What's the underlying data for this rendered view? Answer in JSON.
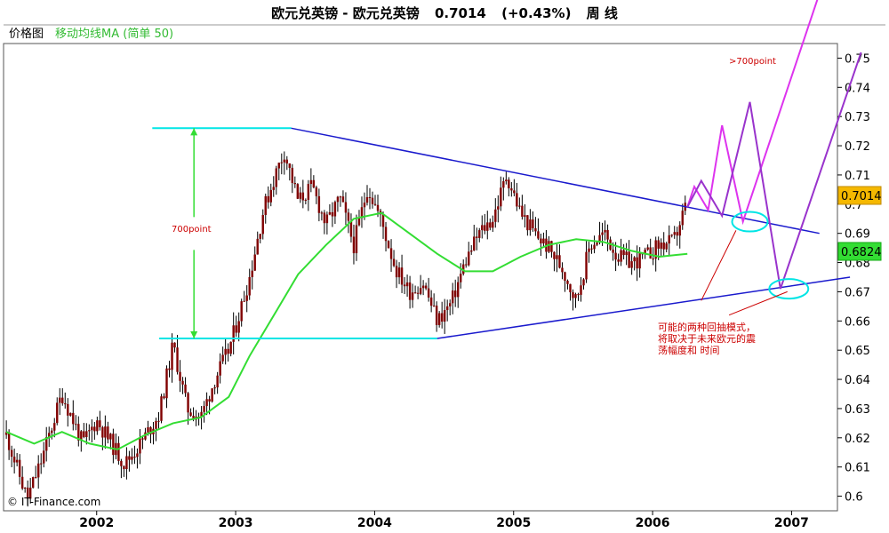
{
  "window": {
    "title": "欧元兑英镑 - 欧元兑英镑",
    "price": "0.7014",
    "change": "(+0.43%)",
    "period": "周 线"
  },
  "legend": {
    "chart_label": "价格图",
    "ma_label": "移动均线MA (简单 50)"
  },
  "annotations": {
    "height_label": "700point",
    "target_label": ">700point",
    "note_line1": "可能的两种回抽模式，",
    "note_line2": "将取决于未来欧元的震",
    "note_line3": "荡幅度和 时间",
    "watermark": "© IT-Finance.com"
  },
  "badges": {
    "price": "0.7014",
    "ma": "0.6824"
  },
  "colors": {
    "candle": "#800000",
    "ma": "#33dd33",
    "cyan": "#00e5e5",
    "trend_blue": "#1a1acd",
    "magenta_scenario": "#dd33ee",
    "purple_scenario": "#9933cc",
    "annotation_red": "#cc0000",
    "price_badge": "#f5b800",
    "ma_badge": "#33dd33"
  },
  "chart_data": {
    "type": "line",
    "series": [
      {
        "name": "",
        "values": [
          [
            2001.35,
            0.621
          ],
          [
            2001.5,
            0.599
          ],
          [
            2001.6,
            0.612
          ],
          [
            2001.75,
            0.635
          ],
          [
            2001.9,
            0.618
          ],
          [
            2002.0,
            0.626
          ],
          [
            2002.2,
            0.611
          ],
          [
            2002.3,
            0.617
          ],
          [
            2002.45,
            0.628
          ],
          [
            2002.55,
            0.652
          ],
          [
            2002.65,
            0.63
          ],
          [
            2002.75,
            0.627
          ],
          [
            2002.85,
            0.64
          ],
          [
            2002.95,
            0.65
          ],
          [
            2003.0,
            0.658
          ],
          [
            2003.1,
            0.675
          ],
          [
            2003.2,
            0.698
          ],
          [
            2003.3,
            0.712
          ],
          [
            2003.35,
            0.718
          ],
          [
            2003.45,
            0.701
          ],
          [
            2003.55,
            0.706
          ],
          [
            2003.65,
            0.693
          ],
          [
            2003.75,
            0.702
          ],
          [
            2003.85,
            0.686
          ],
          [
            2003.95,
            0.706
          ],
          [
            2004.05,
            0.694
          ],
          [
            2004.15,
            0.678
          ],
          [
            2004.25,
            0.67
          ],
          [
            2004.35,
            0.673
          ],
          [
            2004.45,
            0.66
          ],
          [
            2004.55,
            0.666
          ],
          [
            2004.65,
            0.68
          ],
          [
            2004.75,
            0.69
          ],
          [
            2004.85,
            0.695
          ],
          [
            2004.95,
            0.71
          ],
          [
            2005.05,
            0.697
          ],
          [
            2005.15,
            0.69
          ],
          [
            2005.25,
            0.685
          ],
          [
            2005.35,
            0.678
          ],
          [
            2005.45,
            0.667
          ],
          [
            2005.55,
            0.686
          ],
          [
            2005.65,
            0.69
          ],
          [
            2005.75,
            0.682
          ],
          [
            2005.85,
            0.68
          ],
          [
            2005.95,
            0.682
          ],
          [
            2006.05,
            0.686
          ],
          [
            2006.15,
            0.687
          ],
          [
            2006.25,
            0.701
          ]
        ]
      },
      {
        "name": "移动均线MA (简单 50)",
        "values": [
          [
            2001.35,
            0.622
          ],
          [
            2001.55,
            0.618
          ],
          [
            2001.75,
            0.622
          ],
          [
            2001.95,
            0.618
          ],
          [
            2002.15,
            0.616
          ],
          [
            2002.35,
            0.621
          ],
          [
            2002.55,
            0.625
          ],
          [
            2002.75,
            0.627
          ],
          [
            2002.95,
            0.634
          ],
          [
            2003.1,
            0.648
          ],
          [
            2003.3,
            0.664
          ],
          [
            2003.45,
            0.676
          ],
          [
            2003.65,
            0.686
          ],
          [
            2003.85,
            0.695
          ],
          [
            2004.05,
            0.697
          ],
          [
            2004.25,
            0.69
          ],
          [
            2004.45,
            0.683
          ],
          [
            2004.65,
            0.677
          ],
          [
            2004.85,
            0.677
          ],
          [
            2005.05,
            0.682
          ],
          [
            2005.25,
            0.686
          ],
          [
            2005.45,
            0.688
          ],
          [
            2005.65,
            0.687
          ],
          [
            2005.85,
            0.684
          ],
          [
            2006.05,
            0.682
          ],
          [
            2006.25,
            0.683
          ]
        ]
      }
    ],
    "drawn_lines": {
      "cyan_top": [
        [
          2002.4,
          0.726
        ],
        [
          2003.4,
          0.726
        ]
      ],
      "cyan_bottom": [
        [
          2002.45,
          0.654
        ],
        [
          2004.45,
          0.654
        ]
      ],
      "upper_trend": [
        [
          2003.4,
          0.726
        ],
        [
          2007.2,
          0.69
        ]
      ],
      "lower_trend": [
        [
          2004.45,
          0.654
        ],
        [
          2007.42,
          0.675
        ]
      ],
      "green_arrow": [
        [
          2002.7,
          0.726
        ],
        [
          2002.7,
          0.654
        ]
      ],
      "magenta_path": [
        [
          2006.25,
          0.699
        ],
        [
          2006.3,
          0.706
        ],
        [
          2006.4,
          0.698
        ],
        [
          2006.5,
          0.727
        ],
        [
          2006.65,
          0.694
        ],
        [
          2007.27,
          0.782
        ]
      ],
      "purple_path": [
        [
          2006.25,
          0.699
        ],
        [
          2006.35,
          0.708
        ],
        [
          2006.5,
          0.696
        ],
        [
          2006.7,
          0.735
        ],
        [
          2006.92,
          0.671
        ],
        [
          2007.5,
          0.752
        ]
      ],
      "cyan_ellipse_1": [
        2006.7,
        0.694
      ],
      "cyan_ellipse_2": [
        2006.98,
        0.671
      ],
      "red_pointer_1": [
        [
          2006.35,
          0.667
        ],
        [
          2006.6,
          0.691
        ]
      ],
      "red_pointer_2": [
        [
          2006.55,
          0.662
        ],
        [
          2006.97,
          0.67
        ]
      ]
    },
    "yticks": [
      0.6,
      0.61,
      0.62,
      0.63,
      0.64,
      0.65,
      0.66,
      0.67,
      0.68,
      0.69,
      0.7,
      0.71,
      0.72,
      0.73,
      0.74,
      0.75
    ],
    "xticks": [
      2002,
      2003,
      2004,
      2005,
      2006,
      2007
    ],
    "ylim": [
      0.595,
      0.755
    ],
    "xlim": [
      2001.33,
      2007.33
    ],
    "grid": false,
    "legend_position": "top-left"
  }
}
